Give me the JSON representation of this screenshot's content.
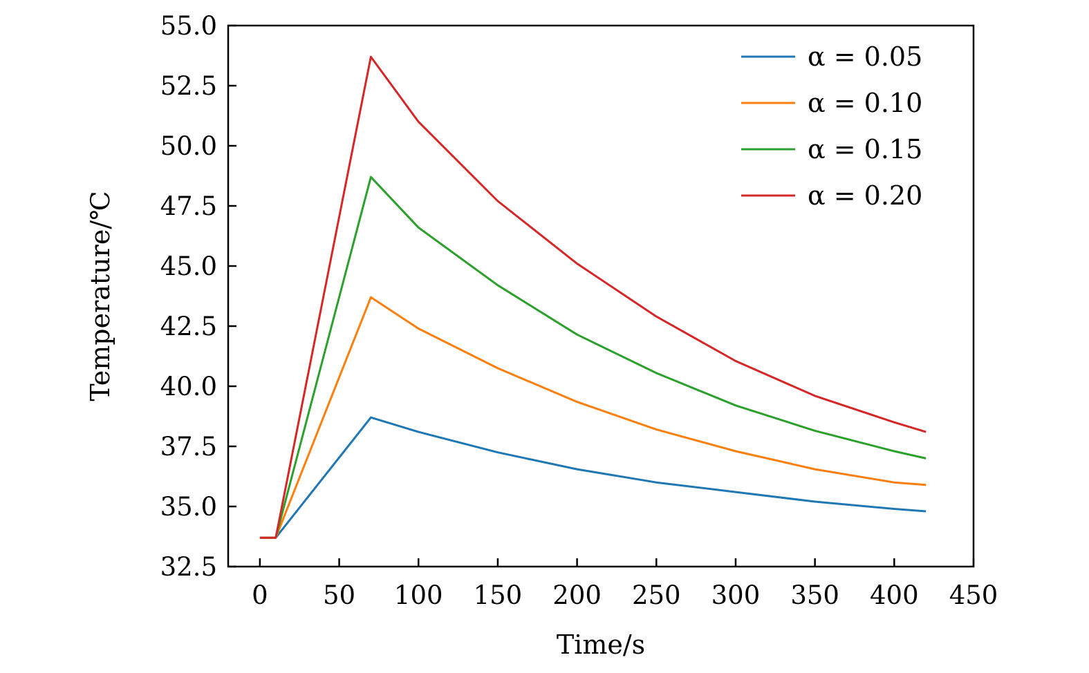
{
  "chart_data": {
    "type": "line",
    "xlabel": "Time/s",
    "ylabel": "Temperature/℃",
    "xlim": [
      -20,
      450
    ],
    "ylim": [
      32.5,
      55.0
    ],
    "xticks": [
      0,
      50,
      100,
      150,
      200,
      250,
      300,
      350,
      400,
      450
    ],
    "xtick_labels": [
      "0",
      "50",
      "100",
      "150",
      "200",
      "250",
      "300",
      "350",
      "400",
      "450"
    ],
    "yticks": [
      32.5,
      35.0,
      37.5,
      40.0,
      42.5,
      45.0,
      47.5,
      50.0,
      52.5,
      55.0
    ],
    "ytick_labels": [
      "32.5",
      "35.0",
      "37.5",
      "40.0",
      "42.5",
      "45.0",
      "47.5",
      "50.0",
      "52.5",
      "55.0"
    ],
    "grid": false,
    "legend_position": "top-right",
    "x": [
      0,
      10,
      70,
      100,
      150,
      200,
      250,
      300,
      350,
      400,
      420
    ],
    "series": [
      {
        "name": "α = 0.05",
        "color": "#1f77b4",
        "values": [
          33.7,
          33.7,
          38.7,
          38.1,
          37.25,
          36.55,
          36.0,
          35.6,
          35.2,
          34.9,
          34.8
        ]
      },
      {
        "name": "α = 0.10",
        "color": "#ff7f0e",
        "values": [
          33.7,
          33.7,
          43.7,
          42.4,
          40.75,
          39.35,
          38.2,
          37.3,
          36.55,
          36.0,
          35.9
        ]
      },
      {
        "name": "α = 0.15",
        "color": "#2ca02c",
        "values": [
          33.7,
          33.7,
          48.7,
          46.6,
          44.2,
          42.15,
          40.55,
          39.2,
          38.15,
          37.3,
          37.0
        ]
      },
      {
        "name": "α = 0.20",
        "color": "#d62728",
        "values": [
          33.7,
          33.7,
          53.7,
          51.0,
          47.7,
          45.1,
          42.9,
          41.05,
          39.6,
          38.5,
          38.1
        ]
      }
    ]
  }
}
